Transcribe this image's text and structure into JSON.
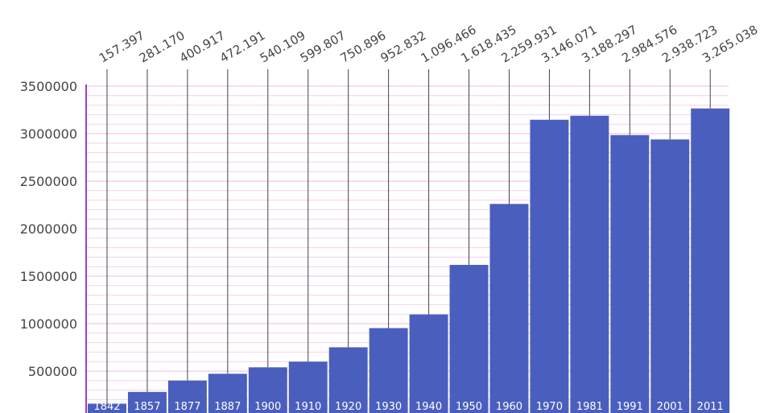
{
  "chart_data": {
    "type": "bar",
    "categories": [
      "1842",
      "1857",
      "1877",
      "1887",
      "1900",
      "1910",
      "1920",
      "1930",
      "1940",
      "1950",
      "1960",
      "1970",
      "1981",
      "1991",
      "2001",
      "2011"
    ],
    "values": [
      157397,
      281170,
      400917,
      472191,
      540109,
      599807,
      750896,
      952832,
      1096466,
      1618435,
      2259931,
      3146071,
      3188297,
      2984576,
      2938723,
      3265038
    ],
    "value_labels": [
      "157.397",
      "281.170",
      "400.917",
      "472.191",
      "540.109",
      "599.807",
      "750.896",
      "952.832",
      "1.096.466",
      "1.618.435",
      "2.259.931",
      "3.146.071",
      "3.188.297",
      "2.984.576",
      "2.938.723",
      "3.265.038"
    ],
    "y_ticks": [
      "500000",
      "1000000",
      "1500000",
      "2000000",
      "2500000",
      "3000000",
      "3500000"
    ],
    "y_tick_values": [
      500000,
      1000000,
      1500000,
      2000000,
      2500000,
      3000000,
      3500000
    ],
    "ylim": [
      0,
      3500000
    ],
    "grid": true,
    "title": "",
    "xlabel": "",
    "ylabel": "",
    "colors": {
      "bar": "#4a5ebd",
      "grid": "#f4cff0",
      "axis": "#a03cc8",
      "leader": "#444444",
      "text": "#444444"
    }
  }
}
